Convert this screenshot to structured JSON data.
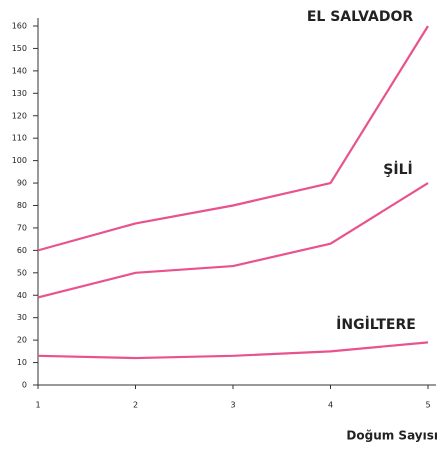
{
  "chart_data": {
    "type": "line",
    "x": [
      1,
      2,
      3,
      4,
      5
    ],
    "series": [
      {
        "name": "EL SALVADOR",
        "color": "#e9528c",
        "values": [
          60,
          72,
          80,
          90,
          160
        ]
      },
      {
        "name": "ŞİLİ",
        "color": "#e9528c",
        "values": [
          39,
          50,
          53,
          63,
          90
        ]
      },
      {
        "name": "İNGİLTERE",
        "color": "#e9528c",
        "values": [
          13,
          12,
          13,
          15,
          19
        ]
      }
    ],
    "x_label": "Doğum Sayısı",
    "xlim": [
      1,
      5
    ],
    "xticks": [
      1,
      2,
      3,
      4,
      5
    ],
    "ylim": [
      0,
      160
    ],
    "yticks": [
      0,
      10,
      20,
      30,
      40,
      50,
      60,
      70,
      80,
      90,
      100,
      110,
      120,
      130,
      140,
      150,
      160
    ]
  }
}
